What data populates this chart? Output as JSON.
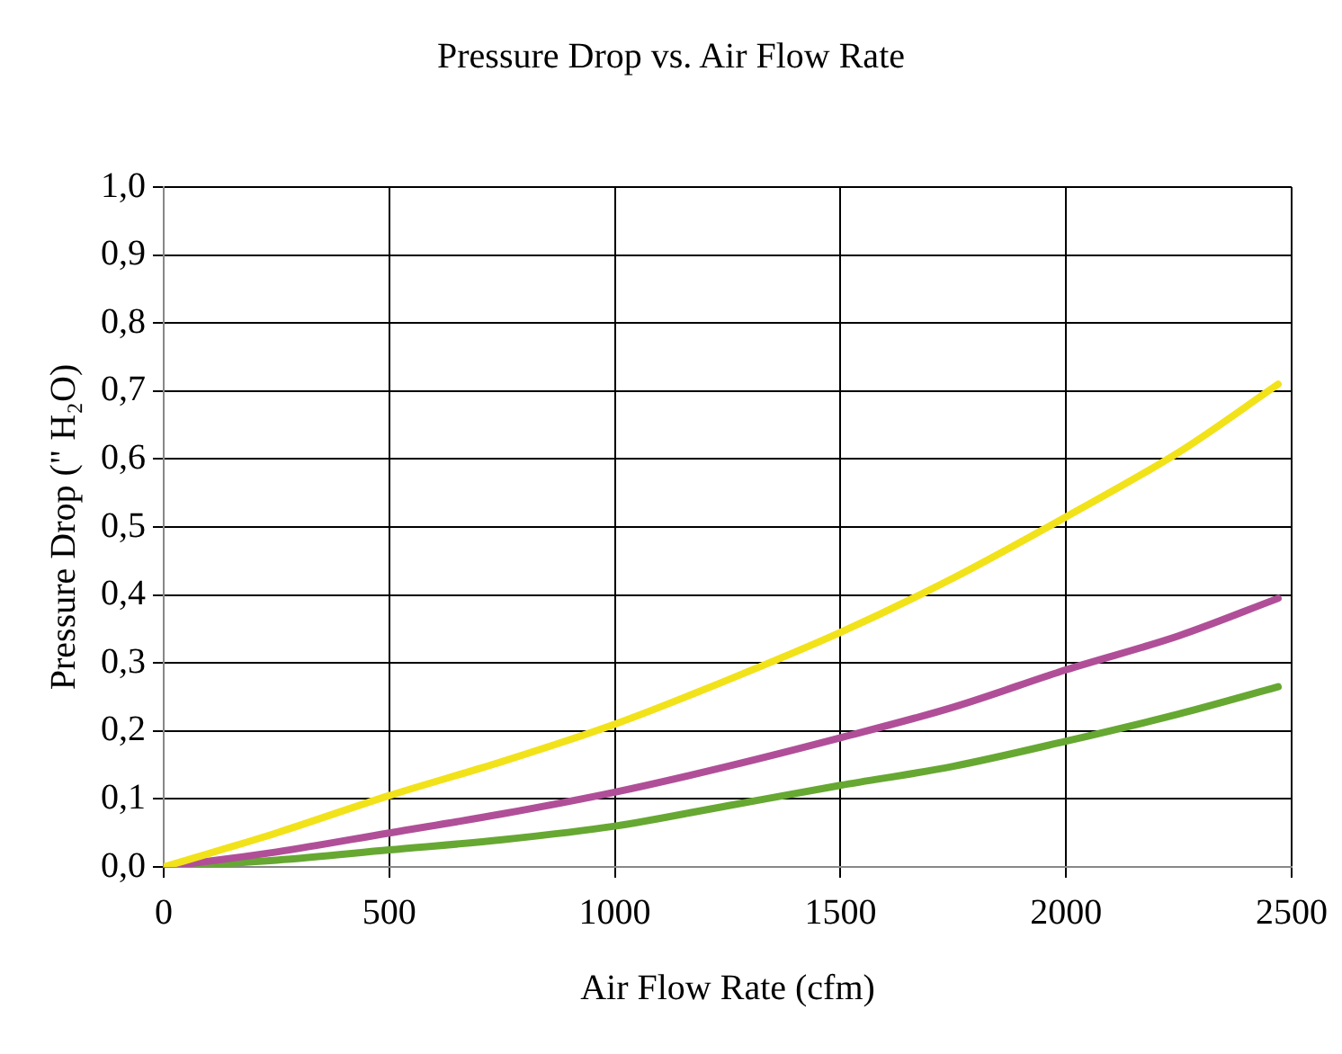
{
  "chart_data": {
    "type": "line",
    "title": "Pressure Drop vs. Air Flow Rate",
    "xlabel": "Air Flow Rate (cfm)",
    "ylabel": "Pressure Drop (\" H₂O)",
    "x": [
      0,
      250,
      500,
      750,
      1000,
      1250,
      1500,
      1750,
      2000,
      2250,
      2470
    ],
    "series": [
      {
        "color": "#f2e21a",
        "values": [
          0,
          0.05,
          0.105,
          0.155,
          0.21,
          0.275,
          0.345,
          0.425,
          0.515,
          0.61,
          0.71
        ]
      },
      {
        "color": "#b04f98",
        "values": [
          0,
          0.022,
          0.05,
          0.078,
          0.11,
          0.148,
          0.19,
          0.235,
          0.29,
          0.34,
          0.395
        ]
      },
      {
        "color": "#66a832",
        "values": [
          0,
          0.01,
          0.025,
          0.04,
          0.06,
          0.09,
          0.12,
          0.148,
          0.185,
          0.225,
          0.265
        ]
      }
    ],
    "xlim": [
      0,
      2500
    ],
    "xticks": [
      0,
      500,
      1000,
      1500,
      2000,
      2500
    ],
    "ylim": [
      0,
      1
    ],
    "yticks": [
      {
        "value": 0,
        "label": "0,0"
      },
      {
        "value": 0.1,
        "label": "0,1"
      },
      {
        "value": 0.2,
        "label": "0,2"
      },
      {
        "value": 0.3,
        "label": "0,3"
      },
      {
        "value": 0.4,
        "label": "0,4"
      },
      {
        "value": 0.5,
        "label": "0,5"
      },
      {
        "value": 0.6,
        "label": "0,6"
      },
      {
        "value": 0.7,
        "label": "0,7"
      },
      {
        "value": 0.8,
        "label": "0,8"
      },
      {
        "value": 0.9,
        "label": "0,9"
      },
      {
        "value": 1,
        "label": "1,0"
      }
    ],
    "grid": true,
    "legend": false,
    "marker": "none",
    "line_style": "solid"
  }
}
